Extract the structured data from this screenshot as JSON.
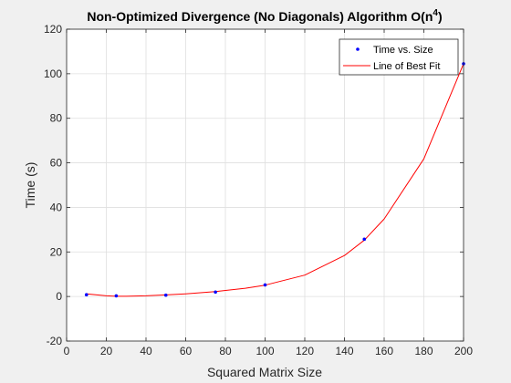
{
  "chart_data": {
    "type": "scatter",
    "title": "Non-Optimized Divergence (No Diagonals) Algorithm O(n",
    "title_superscript": "4",
    "title_suffix": ")",
    "xlabel": "Squared Matrix Size",
    "ylabel": "Time (s)",
    "xlim": [
      0,
      200
    ],
    "ylim": [
      -20,
      120
    ],
    "xticks": [
      "0",
      "20",
      "40",
      "60",
      "80",
      "100",
      "120",
      "140",
      "160",
      "180",
      "200"
    ],
    "yticks": [
      "-20",
      "0",
      "20",
      "40",
      "60",
      "80",
      "100",
      "120"
    ],
    "grid": true,
    "legend_position": "top-right",
    "series": [
      {
        "name": "Time vs. Size",
        "kind": "markers",
        "color": "#0000ff",
        "x": [
          10,
          25,
          50,
          75,
          100,
          150,
          200
        ],
        "y": [
          0.8,
          0.3,
          0.6,
          2.0,
          5.2,
          25.7,
          104.5
        ]
      },
      {
        "name": "Line of Best Fit",
        "kind": "line",
        "color": "#ff0000",
        "fit": "quartic",
        "x": [
          10,
          20,
          25,
          30,
          40,
          50,
          60,
          75,
          90,
          100,
          120,
          140,
          150,
          160,
          180,
          200
        ],
        "y": [
          1.2,
          0.3,
          0.1,
          0.1,
          0.3,
          0.7,
          1.2,
          2.2,
          3.7,
          5.1,
          9.6,
          18.4,
          25.3,
          34.8,
          61.8,
          104.5
        ]
      }
    ]
  }
}
